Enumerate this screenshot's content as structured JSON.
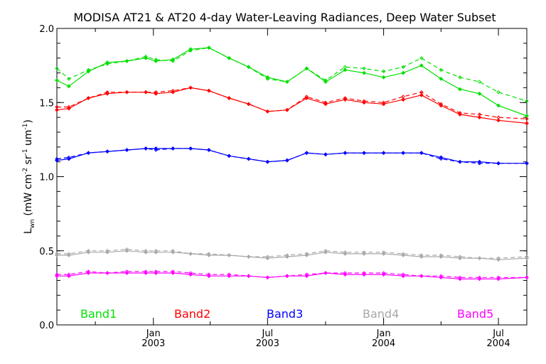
{
  "chart_data": {
    "type": "line",
    "title": "MODISA AT21 & AT20 4-day Water-Leaving Radiances, Deep Water Subset",
    "ylabel": "L",
    "ylabel_sub": "wn",
    "ylabel_units": "(mW cm",
    "ylabel_units_full": [
      "(mW cm",
      "-2",
      " sr",
      "-1",
      " um",
      "-1",
      ")"
    ],
    "xlabel": "",
    "ylim": [
      0.0,
      2.0
    ],
    "yticks": [
      "0.0",
      "0.5",
      "1.0",
      "1.5",
      "2.0"
    ],
    "xlim": [
      "2002-08-01",
      "2004-08-15"
    ],
    "xticks": [
      {
        "month": "Jan",
        "year": "2003",
        "date": "2003-01-01"
      },
      {
        "month": "Jul",
        "year": "2003",
        "date": "2003-07-01"
      },
      {
        "month": "Jan",
        "year": "2004",
        "date": "2004-01-01"
      },
      {
        "month": "Jul",
        "year": "2004",
        "date": "2004-07-01"
      }
    ],
    "minor_ticks": [
      "2002-10-01",
      "2003-04-01",
      "2003-10-01",
      "2004-04-01"
    ],
    "series": [
      {
        "name": "Band1",
        "color": "#00e000",
        "x": [
          "2002-08-01",
          "2002-08-20",
          "2002-09-20",
          "2002-10-20",
          "2002-11-20",
          "2002-12-20",
          "2003-01-05",
          "2003-02-01",
          "2003-03-01",
          "2003-03-30",
          "2003-05-01",
          "2003-06-01",
          "2003-07-01",
          "2003-08-01",
          "2003-09-01",
          "2003-10-01",
          "2003-11-01",
          "2003-12-01",
          "2004-01-01",
          "2004-02-01",
          "2004-03-01",
          "2004-04-01",
          "2004-05-01",
          "2004-06-01",
          "2004-07-01",
          "2004-08-15"
        ],
        "solid": [
          1.65,
          1.61,
          1.71,
          1.77,
          1.78,
          1.8,
          1.78,
          1.79,
          1.86,
          1.87,
          1.8,
          1.74,
          1.67,
          1.64,
          1.73,
          1.64,
          1.72,
          1.7,
          1.67,
          1.7,
          1.75,
          1.66,
          1.59,
          1.56,
          1.48,
          1.41
        ],
        "dashed": [
          1.73,
          1.66,
          1.72,
          1.76,
          1.78,
          1.81,
          1.79,
          1.78,
          1.85,
          1.87,
          1.8,
          1.74,
          1.66,
          1.64,
          1.73,
          1.65,
          1.74,
          1.73,
          1.71,
          1.74,
          1.8,
          1.72,
          1.67,
          1.64,
          1.57,
          1.51
        ]
      },
      {
        "name": "Band2",
        "color": "#ff0000",
        "x": [
          "2002-08-01",
          "2002-08-20",
          "2002-09-20",
          "2002-10-20",
          "2002-11-20",
          "2002-12-20",
          "2003-01-05",
          "2003-02-01",
          "2003-03-01",
          "2003-03-30",
          "2003-05-01",
          "2003-06-01",
          "2003-07-01",
          "2003-08-01",
          "2003-09-01",
          "2003-10-01",
          "2003-11-01",
          "2003-12-01",
          "2004-01-01",
          "2004-02-01",
          "2004-03-01",
          "2004-04-01",
          "2004-05-01",
          "2004-06-01",
          "2004-07-01",
          "2004-08-15"
        ],
        "solid": [
          1.45,
          1.46,
          1.53,
          1.56,
          1.57,
          1.57,
          1.56,
          1.57,
          1.6,
          1.58,
          1.53,
          1.49,
          1.44,
          1.45,
          1.53,
          1.49,
          1.52,
          1.5,
          1.49,
          1.52,
          1.55,
          1.48,
          1.42,
          1.4,
          1.38,
          1.36
        ],
        "dashed": [
          1.47,
          1.47,
          1.53,
          1.57,
          1.57,
          1.57,
          1.57,
          1.58,
          1.6,
          1.58,
          1.53,
          1.49,
          1.44,
          1.45,
          1.54,
          1.5,
          1.53,
          1.51,
          1.5,
          1.54,
          1.57,
          1.49,
          1.43,
          1.42,
          1.4,
          1.39
        ]
      },
      {
        "name": "Band3",
        "color": "#0000ff",
        "x": [
          "2002-08-01",
          "2002-08-20",
          "2002-09-20",
          "2002-10-20",
          "2002-11-20",
          "2002-12-20",
          "2003-01-05",
          "2003-02-01",
          "2003-03-01",
          "2003-03-30",
          "2003-05-01",
          "2003-06-01",
          "2003-07-01",
          "2003-08-01",
          "2003-09-01",
          "2003-10-01",
          "2003-11-01",
          "2003-12-01",
          "2004-01-01",
          "2004-02-01",
          "2004-03-01",
          "2004-04-01",
          "2004-05-01",
          "2004-06-01",
          "2004-07-01",
          "2004-08-15"
        ],
        "solid": [
          1.11,
          1.12,
          1.16,
          1.17,
          1.18,
          1.19,
          1.19,
          1.19,
          1.19,
          1.18,
          1.14,
          1.12,
          1.1,
          1.11,
          1.16,
          1.15,
          1.16,
          1.16,
          1.16,
          1.16,
          1.16,
          1.13,
          1.1,
          1.1,
          1.09,
          1.09
        ],
        "dashed": [
          1.12,
          1.13,
          1.16,
          1.17,
          1.18,
          1.19,
          1.18,
          1.19,
          1.19,
          1.18,
          1.14,
          1.12,
          1.1,
          1.11,
          1.16,
          1.15,
          1.16,
          1.16,
          1.16,
          1.16,
          1.16,
          1.12,
          1.1,
          1.09,
          1.09,
          1.09
        ]
      },
      {
        "name": "Band4",
        "color": "#a8a8a8",
        "x": [
          "2002-08-01",
          "2002-08-20",
          "2002-09-20",
          "2002-10-20",
          "2002-11-20",
          "2002-12-20",
          "2003-01-05",
          "2003-02-01",
          "2003-03-01",
          "2003-03-30",
          "2003-05-01",
          "2003-06-01",
          "2003-07-01",
          "2003-08-01",
          "2003-09-01",
          "2003-10-01",
          "2003-11-01",
          "2003-12-01",
          "2004-01-01",
          "2004-02-01",
          "2004-03-01",
          "2004-04-01",
          "2004-05-01",
          "2004-06-01",
          "2004-07-01",
          "2004-08-15"
        ],
        "solid": [
          0.47,
          0.47,
          0.49,
          0.49,
          0.5,
          0.49,
          0.49,
          0.49,
          0.48,
          0.47,
          0.47,
          0.46,
          0.45,
          0.46,
          0.47,
          0.49,
          0.48,
          0.48,
          0.48,
          0.47,
          0.46,
          0.46,
          0.45,
          0.45,
          0.44,
          0.45
        ],
        "dashed": [
          0.48,
          0.48,
          0.5,
          0.5,
          0.51,
          0.5,
          0.5,
          0.5,
          0.48,
          0.48,
          0.47,
          0.46,
          0.46,
          0.47,
          0.48,
          0.5,
          0.49,
          0.49,
          0.49,
          0.48,
          0.47,
          0.47,
          0.46,
          0.45,
          0.45,
          0.46
        ]
      },
      {
        "name": "Band5",
        "color": "#ff00ff",
        "x": [
          "2002-08-01",
          "2002-08-20",
          "2002-09-20",
          "2002-10-20",
          "2002-11-20",
          "2002-12-20",
          "2003-01-05",
          "2003-02-01",
          "2003-03-01",
          "2003-03-30",
          "2003-05-01",
          "2003-06-01",
          "2003-07-01",
          "2003-08-01",
          "2003-09-01",
          "2003-10-01",
          "2003-11-01",
          "2003-12-01",
          "2004-01-01",
          "2004-02-01",
          "2004-03-01",
          "2004-04-01",
          "2004-05-01",
          "2004-06-01",
          "2004-07-01",
          "2004-08-15"
        ],
        "solid": [
          0.33,
          0.33,
          0.35,
          0.35,
          0.35,
          0.35,
          0.35,
          0.35,
          0.34,
          0.33,
          0.33,
          0.33,
          0.32,
          0.33,
          0.33,
          0.35,
          0.34,
          0.34,
          0.34,
          0.33,
          0.33,
          0.32,
          0.31,
          0.31,
          0.31,
          0.32
        ],
        "dashed": [
          0.34,
          0.34,
          0.36,
          0.35,
          0.36,
          0.36,
          0.36,
          0.36,
          0.35,
          0.34,
          0.34,
          0.33,
          0.32,
          0.33,
          0.34,
          0.35,
          0.35,
          0.35,
          0.35,
          0.34,
          0.33,
          0.33,
          0.32,
          0.32,
          0.32,
          0.32
        ]
      }
    ],
    "legend_placement": "bottom inside plot, in a row",
    "grid": false
  }
}
